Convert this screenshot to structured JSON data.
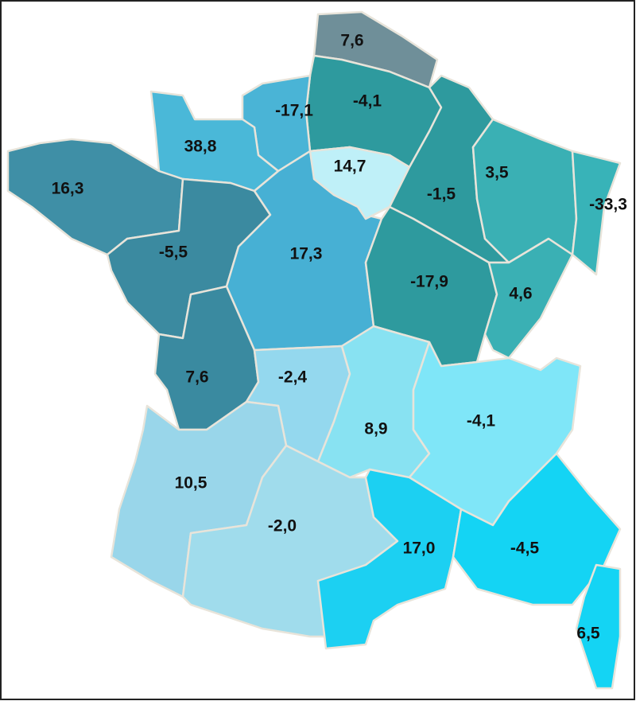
{
  "regions": [
    {
      "label": "7,6",
      "color": "#6f8f99"
    },
    {
      "label": "-4,1",
      "color": "#2e9a9e"
    },
    {
      "label": "-17,1",
      "color": "#4ab4d6"
    },
    {
      "label": "38,8",
      "color": "#4ab8d8"
    },
    {
      "label": "16,3",
      "color": "#3f8fa6"
    },
    {
      "label": "-5,5",
      "color": "#3b8aa0"
    },
    {
      "label": "17,3",
      "color": "#47b0d4"
    },
    {
      "label": "14,7",
      "color": "#bff0f8"
    },
    {
      "label": "-1,5",
      "color": "#2e9a9e"
    },
    {
      "label": "3,5",
      "color": "#3ab0b4"
    },
    {
      "label": "-33,3",
      "color": "#38b3b8"
    },
    {
      "label": "-17,9",
      "color": "#2e9a9e"
    },
    {
      "label": "4,6",
      "color": "#3ab0b4"
    },
    {
      "label": "7,6",
      "color": "#3a8aa0"
    },
    {
      "label": "-2,4",
      "color": "#94d8ee"
    },
    {
      "label": "8,9",
      "color": "#88e2f2"
    },
    {
      "label": "-4,1",
      "color": "#7fe6f8"
    },
    {
      "label": "10,5",
      "color": "#99d6ea"
    },
    {
      "label": "-2,0",
      "color": "#a0dcec"
    },
    {
      "label": "17,0",
      "color": "#1cd0f2"
    },
    {
      "label": "-4,5",
      "color": "#14d4f4"
    },
    {
      "label": "6,5",
      "color": "#14d4f4"
    }
  ]
}
